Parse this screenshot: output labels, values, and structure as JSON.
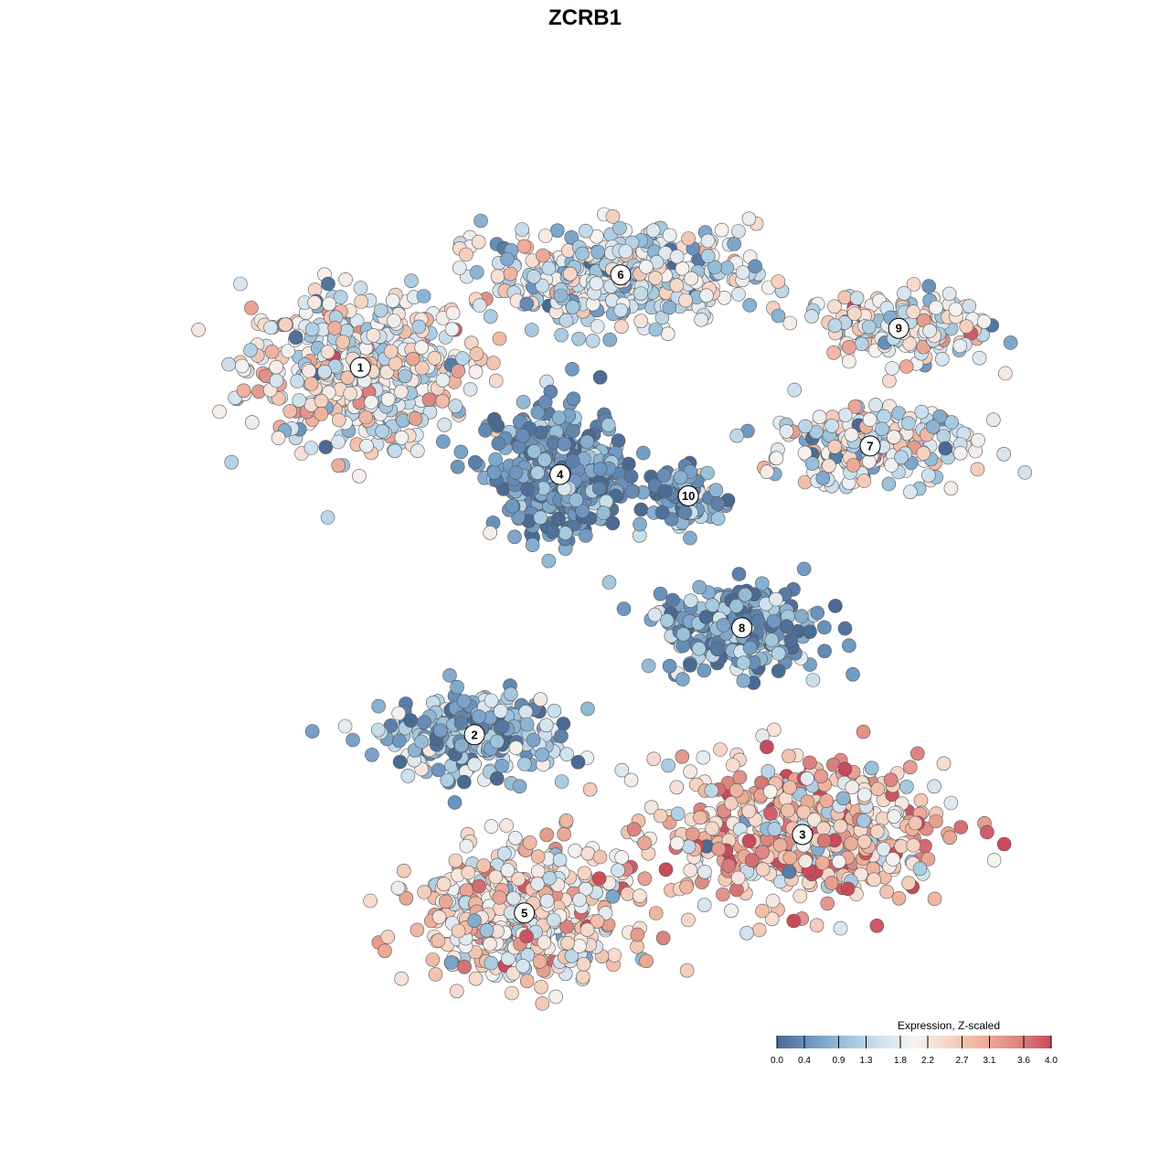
{
  "chart_data": {
    "type": "scatter",
    "title": "ZCRB1",
    "xlabel": "",
    "ylabel": "",
    "grid": false,
    "legend": {
      "title": "Expression, Z-scaled",
      "placement": "bottom-right",
      "ticks": [
        "0.0",
        "0.4",
        "0.9",
        "1.3",
        "1.8",
        "2.2",
        "2.7",
        "3.1",
        "3.6",
        "4.0"
      ],
      "range": [
        0,
        4
      ],
      "colors": [
        "#4a6a92",
        "#6e97c2",
        "#9cc3db",
        "#cfe1ee",
        "#f5f3f2",
        "#f6d6c6",
        "#eeb09a",
        "#dc8782",
        "#c94a5a"
      ]
    },
    "clusters": [
      {
        "label": "1",
        "x": -3.15,
        "y": 3.05,
        "level": 1.9
      },
      {
        "label": "2",
        "x": -1.55,
        "y": -2.1,
        "level": 0.9
      },
      {
        "label": "3",
        "x": 3.05,
        "y": -3.5,
        "level": 2.6
      },
      {
        "label": "4",
        "x": -0.35,
        "y": 1.55,
        "level": 0.5
      },
      {
        "label": "5",
        "x": -0.85,
        "y": -4.6,
        "level": 2.3
      },
      {
        "label": "6",
        "x": 0.5,
        "y": 4.35,
        "level": 1.6
      },
      {
        "label": "7",
        "x": 4.0,
        "y": 1.95,
        "level": 1.7
      },
      {
        "label": "8",
        "x": 2.2,
        "y": -0.6,
        "level": 0.6
      },
      {
        "label": "9",
        "x": 4.4,
        "y": 3.6,
        "level": 1.9
      },
      {
        "label": "10",
        "x": 1.45,
        "y": 1.25,
        "level": 0.6
      }
    ]
  }
}
